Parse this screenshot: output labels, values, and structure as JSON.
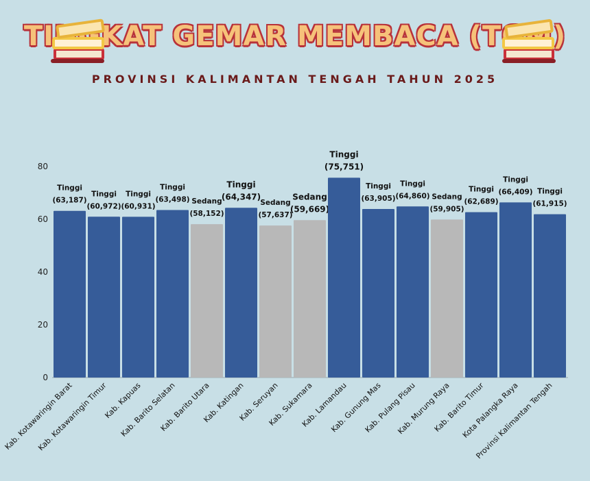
{
  "header": {
    "title": "TINGKAT GEMAR MEMBACA (TGM)",
    "subtitle": "PROVINSI KALIMANTAN TENGAH TAHUN 2025",
    "icons": [
      "books-icon",
      "books-icon"
    ]
  },
  "colors": {
    "tinggi": "#365c99",
    "sedang": "#b8b8b8",
    "title_fill": "#f6c27a",
    "title_outline": "#b8323a",
    "subtitle": "#6a1a1a"
  },
  "chart_data": {
    "type": "bar",
    "categories": [
      "Kab. Kotawaringin Barat",
      "Kab. Kotawaringin Timur",
      "Kab. Kapuas",
      "Kab. Barito Selatan",
      "Kab. Barito Utara",
      "Kab. Katingan",
      "Kab. Seruyan",
      "Kab. Sukamara",
      "Kab. Lamandau",
      "Kab. Gunung Mas",
      "Kab. Pulang Pisau",
      "Kab. Murung Raya",
      "Kab. Barito Timur",
      "Kota Palangka Raya",
      "Provinsi Kalimantan Tengah"
    ],
    "values": [
      63.187,
      60.972,
      60.931,
      63.498,
      58.152,
      64.347,
      57.637,
      59.669,
      75.751,
      63.905,
      64.86,
      59.905,
      62.689,
      66.409,
      61.915
    ],
    "data_labels": [
      "(63,187)",
      "(60,972)",
      "(60,931)",
      "(63,498)",
      "(58,152)",
      "(64,347)",
      "(57,637)",
      "(59,669)",
      "(75,751)",
      "(63,905)",
      "(64,860)",
      "(59,905)",
      "(62,689)",
      "(66,409)",
      "(61,915)"
    ],
    "categories_level": [
      "Tinggi",
      "Tinggi",
      "Tinggi",
      "Tinggi",
      "Sedang",
      "Tinggi",
      "Sedang",
      "Sedang",
      "Tinggi",
      "Tinggi",
      "Tinggi",
      "Sedang",
      "Tinggi",
      "Tinggi",
      "Tinggi"
    ],
    "yticks": [
      0,
      20,
      40,
      60,
      80
    ],
    "ylim": [
      0,
      80
    ],
    "grid": false,
    "title": "",
    "xlabel": "",
    "ylabel": ""
  }
}
